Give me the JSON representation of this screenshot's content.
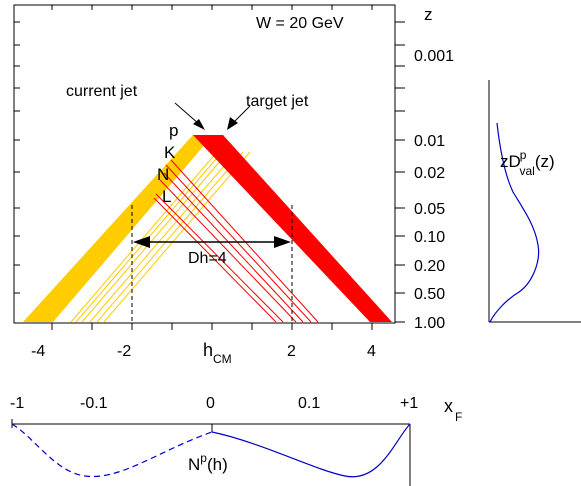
{
  "main_plot": {
    "energy_label": "W = 20 GeV",
    "current_jet_label": "current jet",
    "target_jet_label": "target jet",
    "particle_labels": [
      "p",
      "K",
      "N",
      "L"
    ],
    "rapidity_gap_label": "Dh=4",
    "x_axis": {
      "label_main": "h",
      "label_sub": "CM",
      "ticks": [
        "-4",
        "-2",
        "0",
        "2",
        "4"
      ]
    },
    "z_axis": {
      "label": "z",
      "ticks": [
        "0.001",
        "0.01",
        "0.02",
        "0.05",
        "0.10",
        "0.20",
        "0.50",
        "1.00"
      ]
    },
    "colors": {
      "current_band": "#ffcc00",
      "target_band": "#ff0000",
      "axis": "#000000"
    }
  },
  "side_plot": {
    "label_main": "zD",
    "label_sup": "p",
    "label_sub": "val",
    "label_arg": "(z)",
    "curve_color": "#0000cc"
  },
  "bottom_plot": {
    "x_axis": {
      "label_main": "x",
      "label_sub": "F",
      "ticks": [
        "-1",
        "-0.1",
        "0",
        "0.1",
        "+1"
      ]
    },
    "curve_label_main": "N",
    "curve_label_sup": "p",
    "curve_label_arg": "(h)",
    "curve_color": "#0000cc"
  }
}
